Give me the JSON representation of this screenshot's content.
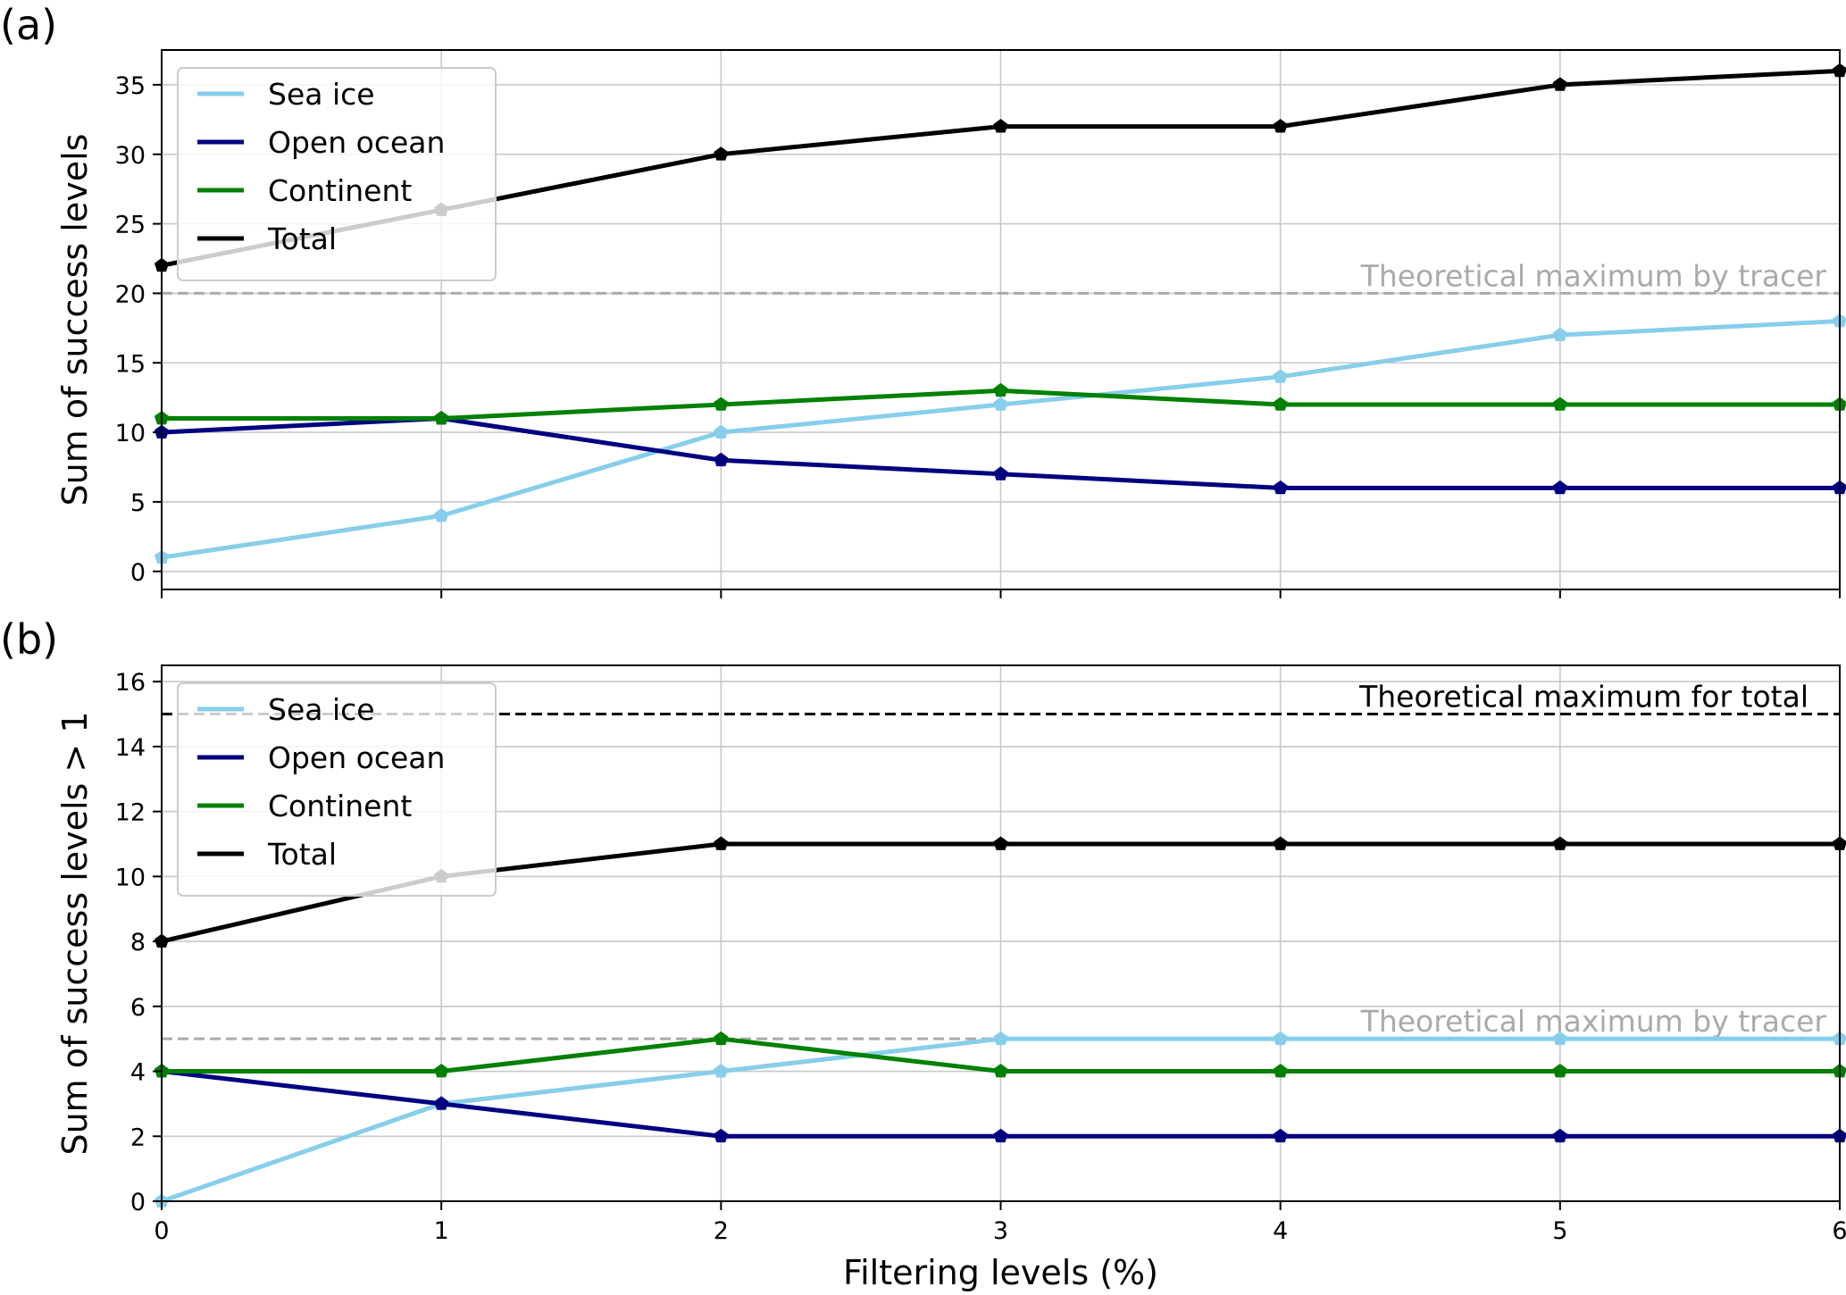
{
  "chart_data": [
    {
      "type": "line",
      "panel_label": "(a)",
      "xlabel": "",
      "ylabel": "Sum of success levels",
      "x": [
        0,
        1,
        2,
        3,
        4,
        5,
        6
      ],
      "xlim": [
        0,
        6
      ],
      "ylim": [
        -1.3,
        37.5
      ],
      "yticks": [
        0,
        5,
        10,
        15,
        20,
        25,
        30,
        35
      ],
      "grid": true,
      "legend_position": "top-left",
      "series": [
        {
          "name": "Sea ice",
          "color": "#87CEEB",
          "values": [
            1,
            4,
            10,
            12,
            14,
            17,
            18
          ]
        },
        {
          "name": "Open ocean",
          "color": "#000080",
          "values": [
            10,
            11,
            8,
            7,
            6,
            6,
            6
          ]
        },
        {
          "name": "Continent",
          "color": "#008000",
          "values": [
            11,
            11,
            12,
            13,
            12,
            12,
            12
          ]
        },
        {
          "name": "Total",
          "color": "#000000",
          "values": [
            22,
            26,
            30,
            32,
            32,
            35,
            36
          ]
        }
      ],
      "reference_lines": [
        {
          "label": "Theoretical maximum by tracer",
          "y": 20,
          "color": "#aaaaaa"
        }
      ]
    },
    {
      "type": "line",
      "panel_label": "(b)",
      "xlabel": "Filtering levels (%)",
      "ylabel": "Sum of success levels > 1",
      "x": [
        0,
        1,
        2,
        3,
        4,
        5,
        6
      ],
      "xlim": [
        0,
        6
      ],
      "ylim": [
        0,
        16.5
      ],
      "yticks": [
        0,
        2,
        4,
        6,
        8,
        10,
        12,
        14,
        16
      ],
      "xticks": [
        0,
        1,
        2,
        3,
        4,
        5,
        6
      ],
      "grid": true,
      "legend_position": "top-left",
      "series": [
        {
          "name": "Sea ice",
          "color": "#87CEEB",
          "values": [
            0,
            3,
            4,
            5,
            5,
            5,
            5
          ]
        },
        {
          "name": "Open ocean",
          "color": "#000080",
          "values": [
            4,
            3,
            2,
            2,
            2,
            2,
            2
          ]
        },
        {
          "name": "Continent",
          "color": "#008000",
          "values": [
            4,
            4,
            5,
            4,
            4,
            4,
            4
          ]
        },
        {
          "name": "Total",
          "color": "#000000",
          "values": [
            8,
            10,
            11,
            11,
            11,
            11,
            11
          ]
        }
      ],
      "reference_lines": [
        {
          "label": "Theoretical maximum for total",
          "y": 15,
          "color": "#000000"
        },
        {
          "label": "Theoretical maximum by tracer",
          "y": 5,
          "color": "#aaaaaa"
        }
      ]
    }
  ]
}
